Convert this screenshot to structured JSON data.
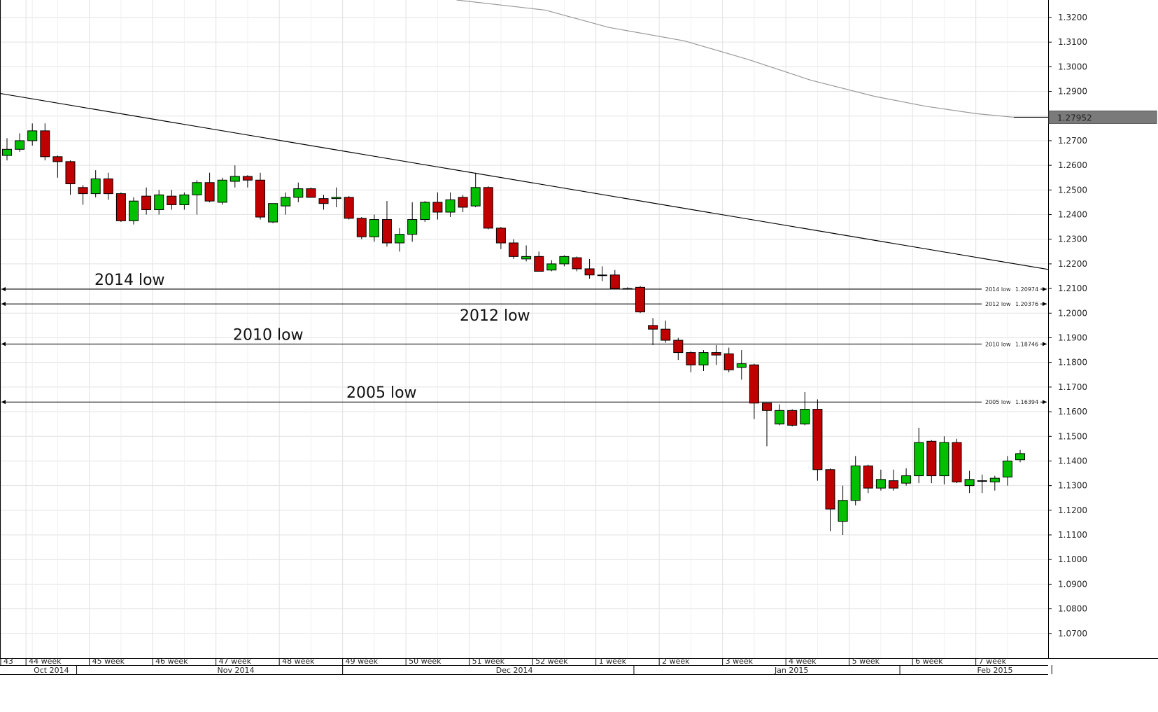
{
  "chart_data": {
    "type": "candlestick",
    "y_axis": {
      "position": "right",
      "ylim": [
        1.06,
        1.3271
      ],
      "ticks": [
        1.07,
        1.08,
        1.09,
        1.1,
        1.11,
        1.12,
        1.13,
        1.14,
        1.15,
        1.16,
        1.17,
        1.18,
        1.19,
        1.2,
        1.21,
        1.22,
        1.23,
        1.24,
        1.25,
        1.26,
        1.27,
        1.28,
        1.29,
        1.3,
        1.31,
        1.32
      ]
    },
    "y_tick_labels": [
      "1.0700",
      "1.0800",
      "1.0900",
      "1.1000",
      "1.1100",
      "1.1200",
      "1.1300",
      "1.1400",
      "1.1500",
      "1.1600",
      "1.1700",
      "1.1800",
      "1.1900",
      "1.2000",
      "1.2100",
      "1.2200",
      "1.2300",
      "1.2400",
      "1.2500",
      "1.2600",
      "1.2700",
      "1.2800",
      "1.2900",
      "1.3000",
      "1.3100",
      "1.3200"
    ],
    "colors": {
      "up": "#00c000",
      "down": "#c00000",
      "grid": "#e2e2e2",
      "line": "#000000",
      "ma_line": "#999999"
    },
    "grid": true,
    "candles": [
      {
        "o": 1.264,
        "h": 1.271,
        "l": 1.262,
        "c": 1.2665
      },
      {
        "o": 1.2665,
        "h": 1.273,
        "l": 1.2655,
        "c": 1.27
      },
      {
        "o": 1.27,
        "h": 1.277,
        "l": 1.268,
        "c": 1.274
      },
      {
        "o": 1.274,
        "h": 1.277,
        "l": 1.262,
        "c": 1.2635
      },
      {
        "o": 1.2635,
        "h": 1.264,
        "l": 1.255,
        "c": 1.2615
      },
      {
        "o": 1.2615,
        "h": 1.262,
        "l": 1.248,
        "c": 1.2525
      },
      {
        "o": 1.251,
        "h": 1.252,
        "l": 1.244,
        "c": 1.2485
      },
      {
        "o": 1.2485,
        "h": 1.258,
        "l": 1.247,
        "c": 1.2545
      },
      {
        "o": 1.2545,
        "h": 1.257,
        "l": 1.246,
        "c": 1.2485
      },
      {
        "o": 1.2485,
        "h": 1.249,
        "l": 1.237,
        "c": 1.2375
      },
      {
        "o": 1.2375,
        "h": 1.247,
        "l": 1.236,
        "c": 1.2455
      },
      {
        "o": 1.2475,
        "h": 1.251,
        "l": 1.24,
        "c": 1.242
      },
      {
        "o": 1.242,
        "h": 1.25,
        "l": 1.24,
        "c": 1.248
      },
      {
        "o": 1.2475,
        "h": 1.25,
        "l": 1.242,
        "c": 1.244
      },
      {
        "o": 1.244,
        "h": 1.249,
        "l": 1.242,
        "c": 1.248
      },
      {
        "o": 1.248,
        "h": 1.254,
        "l": 1.24,
        "c": 1.253
      },
      {
        "o": 1.253,
        "h": 1.257,
        "l": 1.245,
        "c": 1.2455
      },
      {
        "o": 1.245,
        "h": 1.255,
        "l": 1.244,
        "c": 1.254
      },
      {
        "o": 1.2535,
        "h": 1.26,
        "l": 1.251,
        "c": 1.2555
      },
      {
        "o": 1.2555,
        "h": 1.256,
        "l": 1.251,
        "c": 1.254
      },
      {
        "o": 1.254,
        "h": 1.257,
        "l": 1.238,
        "c": 1.239
      },
      {
        "o": 1.237,
        "h": 1.2445,
        "l": 1.2365,
        "c": 1.2445
      },
      {
        "o": 1.2435,
        "h": 1.249,
        "l": 1.24,
        "c": 1.247
      },
      {
        "o": 1.247,
        "h": 1.253,
        "l": 1.245,
        "c": 1.2505
      },
      {
        "o": 1.2505,
        "h": 1.251,
        "l": 1.247,
        "c": 1.247
      },
      {
        "o": 1.2465,
        "h": 1.248,
        "l": 1.242,
        "c": 1.2445
      },
      {
        "o": 1.2465,
        "h": 1.251,
        "l": 1.243,
        "c": 1.247
      },
      {
        "o": 1.247,
        "h": 1.2475,
        "l": 1.238,
        "c": 1.2385
      },
      {
        "o": 1.2385,
        "h": 1.239,
        "l": 1.23,
        "c": 1.231
      },
      {
        "o": 1.231,
        "h": 1.24,
        "l": 1.229,
        "c": 1.238
      },
      {
        "o": 1.238,
        "h": 1.2455,
        "l": 1.227,
        "c": 1.2285
      },
      {
        "o": 1.2285,
        "h": 1.2345,
        "l": 1.225,
        "c": 1.232
      },
      {
        "o": 1.232,
        "h": 1.245,
        "l": 1.229,
        "c": 1.238
      },
      {
        "o": 1.238,
        "h": 1.2455,
        "l": 1.237,
        "c": 1.245
      },
      {
        "o": 1.245,
        "h": 1.249,
        "l": 1.238,
        "c": 1.241
      },
      {
        "o": 1.241,
        "h": 1.249,
        "l": 1.239,
        "c": 1.246
      },
      {
        "o": 1.247,
        "h": 1.248,
        "l": 1.241,
        "c": 1.243
      },
      {
        "o": 1.2435,
        "h": 1.257,
        "l": 1.243,
        "c": 1.251
      },
      {
        "o": 1.251,
        "h": 1.2515,
        "l": 1.234,
        "c": 1.2345
      },
      {
        "o": 1.2345,
        "h": 1.235,
        "l": 1.226,
        "c": 1.2285
      },
      {
        "o": 1.2285,
        "h": 1.23,
        "l": 1.222,
        "c": 1.223
      },
      {
        "o": 1.222,
        "h": 1.2275,
        "l": 1.221,
        "c": 1.223
      },
      {
        "o": 1.223,
        "h": 1.225,
        "l": 1.217,
        "c": 1.217
      },
      {
        "o": 1.2175,
        "h": 1.2215,
        "l": 1.217,
        "c": 1.22
      },
      {
        "o": 1.22,
        "h": 1.2235,
        "l": 1.219,
        "c": 1.223
      },
      {
        "o": 1.2225,
        "h": 1.223,
        "l": 1.217,
        "c": 1.218
      },
      {
        "o": 1.218,
        "h": 1.222,
        "l": 1.214,
        "c": 1.2155
      },
      {
        "o": 1.2155,
        "h": 1.219,
        "l": 1.213,
        "c": 1.2155
      },
      {
        "o": 1.2155,
        "h": 1.2175,
        "l": 1.21,
        "c": 1.21
      },
      {
        "o": 1.21,
        "h": 1.2105,
        "l": 1.21,
        "c": 1.21
      },
      {
        "o": 1.2105,
        "h": 1.211,
        "l": 1.2,
        "c": 1.2005
      },
      {
        "o": 1.195,
        "h": 1.198,
        "l": 1.187,
        "c": 1.1935
      },
      {
        "o": 1.1935,
        "h": 1.197,
        "l": 1.188,
        "c": 1.189
      },
      {
        "o": 1.189,
        "h": 1.19,
        "l": 1.181,
        "c": 1.184
      },
      {
        "o": 1.184,
        "h": 1.1845,
        "l": 1.176,
        "c": 1.179
      },
      {
        "o": 1.179,
        "h": 1.185,
        "l": 1.1765,
        "c": 1.184
      },
      {
        "o": 1.184,
        "h": 1.187,
        "l": 1.179,
        "c": 1.183
      },
      {
        "o": 1.1835,
        "h": 1.186,
        "l": 1.176,
        "c": 1.177
      },
      {
        "o": 1.178,
        "h": 1.185,
        "l": 1.173,
        "c": 1.1795
      },
      {
        "o": 1.179,
        "h": 1.1795,
        "l": 1.157,
        "c": 1.1635
      },
      {
        "o": 1.1635,
        "h": 1.1635,
        "l": 1.146,
        "c": 1.1605
      },
      {
        "o": 1.155,
        "h": 1.163,
        "l": 1.1545,
        "c": 1.1605
      },
      {
        "o": 1.1605,
        "h": 1.161,
        "l": 1.154,
        "c": 1.1545
      },
      {
        "o": 1.155,
        "h": 1.168,
        "l": 1.1545,
        "c": 1.161
      },
      {
        "o": 1.161,
        "h": 1.165,
        "l": 1.132,
        "c": 1.1365
      },
      {
        "o": 1.1365,
        "h": 1.137,
        "l": 1.1115,
        "c": 1.1205
      },
      {
        "o": 1.1155,
        "h": 1.13,
        "l": 1.11,
        "c": 1.124
      },
      {
        "o": 1.124,
        "h": 1.142,
        "l": 1.122,
        "c": 1.138
      },
      {
        "o": 1.138,
        "h": 1.1385,
        "l": 1.127,
        "c": 1.129
      },
      {
        "o": 1.129,
        "h": 1.1365,
        "l": 1.128,
        "c": 1.1325
      },
      {
        "o": 1.132,
        "h": 1.1365,
        "l": 1.128,
        "c": 1.129
      },
      {
        "o": 1.131,
        "h": 1.137,
        "l": 1.13,
        "c": 1.134
      },
      {
        "o": 1.134,
        "h": 1.1535,
        "l": 1.131,
        "c": 1.1475
      },
      {
        "o": 1.148,
        "h": 1.1485,
        "l": 1.131,
        "c": 1.134
      },
      {
        "o": 1.134,
        "h": 1.15,
        "l": 1.1305,
        "c": 1.1475
      },
      {
        "o": 1.1475,
        "h": 1.149,
        "l": 1.131,
        "c": 1.1315
      },
      {
        "o": 1.13,
        "h": 1.136,
        "l": 1.127,
        "c": 1.1325
      },
      {
        "o": 1.132,
        "h": 1.1345,
        "l": 1.127,
        "c": 1.132
      },
      {
        "o": 1.1315,
        "h": 1.134,
        "l": 1.128,
        "c": 1.133
      },
      {
        "o": 1.1335,
        "h": 1.142,
        "l": 1.13,
        "c": 1.14
      },
      {
        "o": 1.1405,
        "h": 1.1445,
        "l": 1.1395,
        "c": 1.143
      }
    ],
    "h_levels": [
      {
        "label": "2014 low",
        "tag": "2014 low",
        "value_text": "1.20974",
        "value": 1.20974
      },
      {
        "label": "2012 low",
        "tag": "2012 low",
        "value_text": "1.20376",
        "value": 1.20376
      },
      {
        "label": "2010 low",
        "tag": "2010 low",
        "value_text": "1.18746",
        "value": 1.18746
      },
      {
        "label": "2005 low",
        "tag": "2005 low",
        "value_text": "1.16394",
        "value": 1.16394
      }
    ],
    "trendline": {
      "from": {
        "candle": -1.5,
        "value": 1.29
      },
      "through": {
        "candle": 37.5,
        "value": 1.257
      },
      "to": {
        "candle": 82.5,
        "value": 1.2175
      }
    },
    "ma_line": [
      {
        "candle": 35.5,
        "value": 1.3271
      },
      {
        "candle": 42.5,
        "value": 1.323
      },
      {
        "candle": 47.5,
        "value": 1.316
      },
      {
        "candle": 53.5,
        "value": 1.3105
      },
      {
        "candle": 58.5,
        "value": 1.303
      },
      {
        "candle": 63.5,
        "value": 1.2945
      },
      {
        "candle": 68.5,
        "value": 1.288
      },
      {
        "candle": 72.5,
        "value": 1.284
      },
      {
        "candle": 76.5,
        "value": 1.281
      },
      {
        "candle": 79.5,
        "value": 1.27952
      }
    ],
    "last_value_label": "1.27952",
    "week_labels": [
      {
        "text": "43",
        "candle": -0.5
      },
      {
        "text": "44 week",
        "candle": 1.5
      },
      {
        "text": "45 week",
        "candle": 6.5
      },
      {
        "text": "46 week",
        "candle": 11.5
      },
      {
        "text": "47 week",
        "candle": 16.5
      },
      {
        "text": "48 week",
        "candle": 21.5
      },
      {
        "text": "49 week",
        "candle": 26.5
      },
      {
        "text": "50 week",
        "candle": 31.5
      },
      {
        "text": "51 week",
        "candle": 36.5
      },
      {
        "text": "52 week",
        "candle": 41.5
      },
      {
        "text": "1 week",
        "candle": 46.5
      },
      {
        "text": "2 week",
        "candle": 51.5
      },
      {
        "text": "3 week",
        "candle": 56.5
      },
      {
        "text": "4 week",
        "candle": 61.5
      },
      {
        "text": "5 week",
        "candle": 66.5
      },
      {
        "text": "6 week",
        "candle": 71.5
      },
      {
        "text": "7 week",
        "candle": 76.5
      }
    ],
    "month_labels": [
      {
        "text": "Oct 2014",
        "candle": 1.0,
        "sep": 5.5
      },
      {
        "text": "Nov 2014",
        "candle": 15.5,
        "sep": 26.5
      },
      {
        "text": "Dec 2014",
        "candle": 37.5,
        "sep": 49.5
      },
      {
        "text": "Jan 2015",
        "candle": 59.5,
        "sep": 70.5
      },
      {
        "text": "Feb 2015",
        "candle": 75.5,
        "sep": 82.5
      }
    ]
  }
}
